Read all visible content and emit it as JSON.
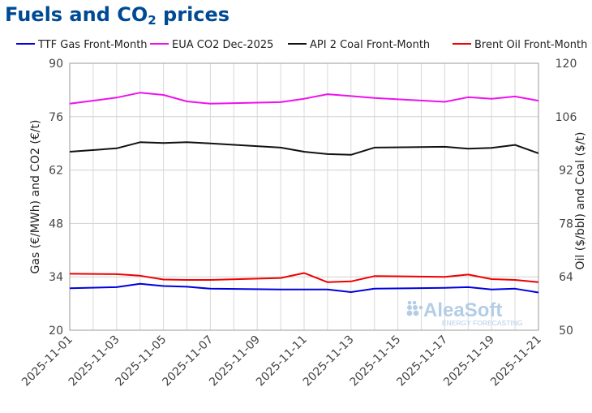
{
  "title": {
    "main": "Fuels and CO",
    "sub": "2",
    "tail": " prices"
  },
  "watermark": {
    "name": "AleaSoft",
    "tagline": "ENERGY FORECASTING"
  },
  "chart_data": {
    "type": "line",
    "x": [
      "2025-11-01",
      "2025-11-03",
      "2025-11-04",
      "2025-11-05",
      "2025-11-06",
      "2025-11-07",
      "2025-11-10",
      "2025-11-11",
      "2025-11-12",
      "2025-11-13",
      "2025-11-14",
      "2025-11-17",
      "2025-11-18",
      "2025-11-19",
      "2025-11-20",
      "2025-11-21"
    ],
    "x_ticks": [
      "2025-11-01",
      "2025-11-03",
      "2025-11-05",
      "2025-11-07",
      "2025-11-09",
      "2025-11-11",
      "2025-11-13",
      "2025-11-15",
      "2025-11-17",
      "2025-11-19",
      "2025-11-21"
    ],
    "left_axis": {
      "label": "Gas (€/MWh) and CO2 (€/t)",
      "range": [
        20,
        90
      ],
      "ticks": [
        20,
        34,
        48,
        62,
        76,
        90
      ]
    },
    "right_axis": {
      "label": "Oil ($/bbl) and Coal ($/t)",
      "range": [
        50,
        120
      ],
      "ticks": [
        50,
        64,
        78,
        92,
        106,
        120
      ]
    },
    "grid": true,
    "legend": "top",
    "series": [
      {
        "name": "TTF Gas Front-Month",
        "axis": "left",
        "color": "#0000dd",
        "values": [
          31.0,
          31.3,
          32.2,
          31.6,
          31.4,
          30.9,
          30.7,
          30.7,
          30.7,
          30.0,
          30.9,
          31.1,
          31.3,
          30.7,
          30.9,
          29.9
        ]
      },
      {
        "name": "EUA CO2 Dec-2025",
        "axis": "left",
        "color": "#ee11ee",
        "values": [
          79.4,
          81.0,
          82.3,
          81.7,
          80.0,
          79.4,
          79.8,
          80.7,
          81.9,
          81.4,
          80.9,
          79.9,
          81.1,
          80.7,
          81.3,
          80.2
        ]
      },
      {
        "name": "API 2 Coal Front-Month",
        "axis": "right",
        "color": "#111111",
        "values": [
          96.8,
          97.7,
          99.3,
          99.1,
          99.3,
          99.0,
          97.9,
          96.8,
          96.2,
          96.0,
          97.9,
          98.1,
          97.6,
          97.8,
          98.6,
          96.4
        ]
      },
      {
        "name": "Brent Oil Front-Month",
        "axis": "right",
        "color": "#ee0000",
        "values": [
          64.8,
          64.7,
          64.3,
          63.3,
          63.2,
          63.2,
          63.7,
          65.0,
          62.6,
          62.8,
          64.2,
          64.0,
          64.6,
          63.4,
          63.2,
          62.6
        ]
      }
    ]
  }
}
